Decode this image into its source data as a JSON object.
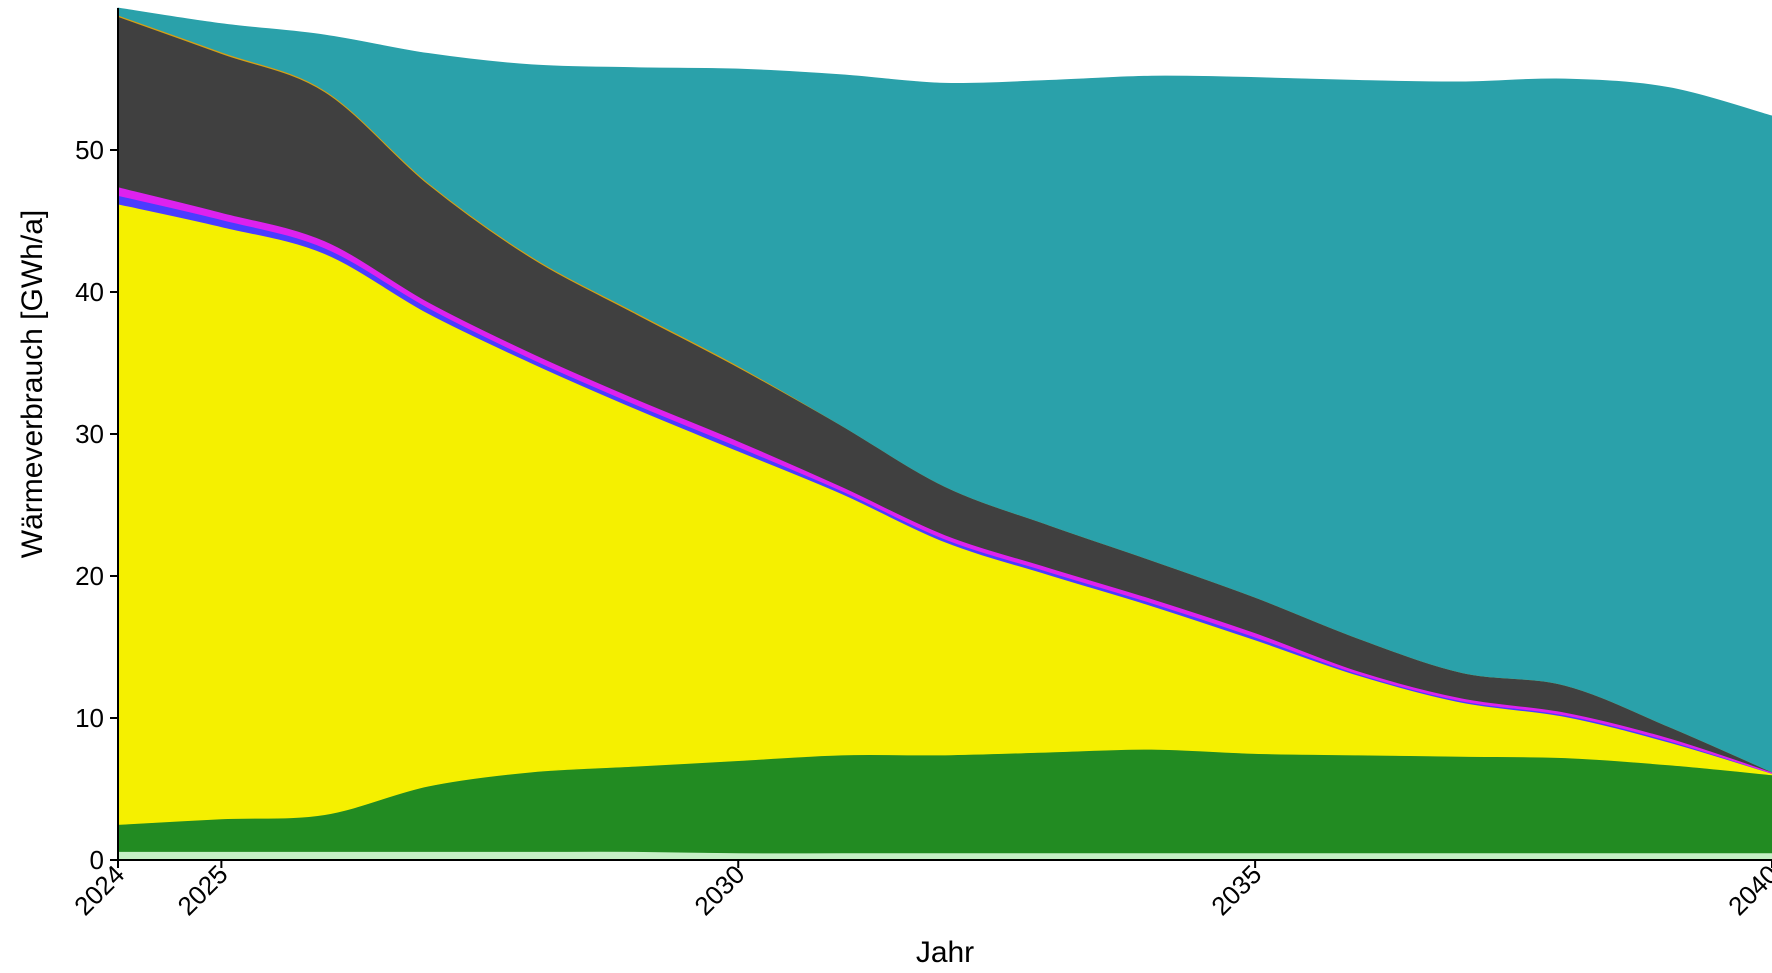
{
  "chart_data": {
    "type": "area",
    "stacked": true,
    "xlabel": "Jahr",
    "ylabel": "Wärmeverbrauch [GWh/a]",
    "xlim": [
      2024,
      2040
    ],
    "ylim": [
      0,
      60
    ],
    "grid": "horizontal dotted",
    "legend": "none",
    "x_ticks": [
      2024,
      2025,
      2030,
      2035,
      2040
    ],
    "y_ticks": [
      0,
      10,
      20,
      30,
      40,
      50
    ],
    "x": [
      2024,
      2025,
      2026,
      2027,
      2028,
      2029,
      2030,
      2031,
      2032,
      2033,
      2034,
      2035,
      2036,
      2037,
      2038,
      2039,
      2040
    ],
    "series": [
      {
        "color": "#c6efc6",
        "values": [
          0.6,
          0.6,
          0.6,
          0.6,
          0.6,
          0.6,
          0.5,
          0.5,
          0.5,
          0.5,
          0.5,
          0.5,
          0.5,
          0.5,
          0.5,
          0.5,
          0.5
        ]
      },
      {
        "color": "#228b22",
        "values": [
          1.9,
          2.3,
          2.6,
          4.6,
          5.6,
          6.0,
          6.5,
          6.9,
          6.9,
          7.1,
          7.3,
          7.0,
          6.9,
          6.8,
          6.7,
          6.2,
          5.5
        ]
      },
      {
        "color": "#f5f000",
        "values": [
          43.7,
          41.7,
          39.5,
          33.3,
          28.8,
          25.2,
          21.8,
          18.4,
          15.0,
          12.5,
          10.1,
          8.0,
          5.6,
          3.8,
          2.9,
          1.6,
          0.1
        ]
      },
      {
        "color": "#4a3cff",
        "values": [
          0.6,
          0.5,
          0.4,
          0.4,
          0.3,
          0.3,
          0.3,
          0.2,
          0.2,
          0.2,
          0.2,
          0.2,
          0.1,
          0.1,
          0.1,
          0.1,
          0.0
        ]
      },
      {
        "color": "#dd22ee",
        "values": [
          0.6,
          0.5,
          0.5,
          0.4,
          0.4,
          0.4,
          0.4,
          0.3,
          0.3,
          0.3,
          0.3,
          0.3,
          0.2,
          0.2,
          0.2,
          0.2,
          0.1
        ]
      },
      {
        "color": "#404040",
        "values": [
          12.0,
          11.2,
          10.5,
          8.3,
          6.7,
          6.0,
          5.2,
          4.3,
          3.4,
          3.0,
          2.7,
          2.5,
          2.3,
          1.8,
          1.9,
          0.8,
          0.0
        ]
      },
      {
        "color": "#d4a017",
        "values": [
          0.1,
          0.1,
          0.1,
          0.1,
          0.1,
          0.1,
          0.1,
          0.0,
          0.0,
          0.0,
          0.0,
          0.0,
          0.0,
          0.0,
          0.0,
          0.0,
          0.0
        ]
      },
      {
        "color": "#2aa1aa",
        "values": [
          0.5,
          2.0,
          3.9,
          9.1,
          13.5,
          17.2,
          20.9,
          24.7,
          28.4,
          31.3,
          34.1,
          36.6,
          39.3,
          41.6,
          42.7,
          45.0,
          46.2
        ]
      }
    ]
  }
}
